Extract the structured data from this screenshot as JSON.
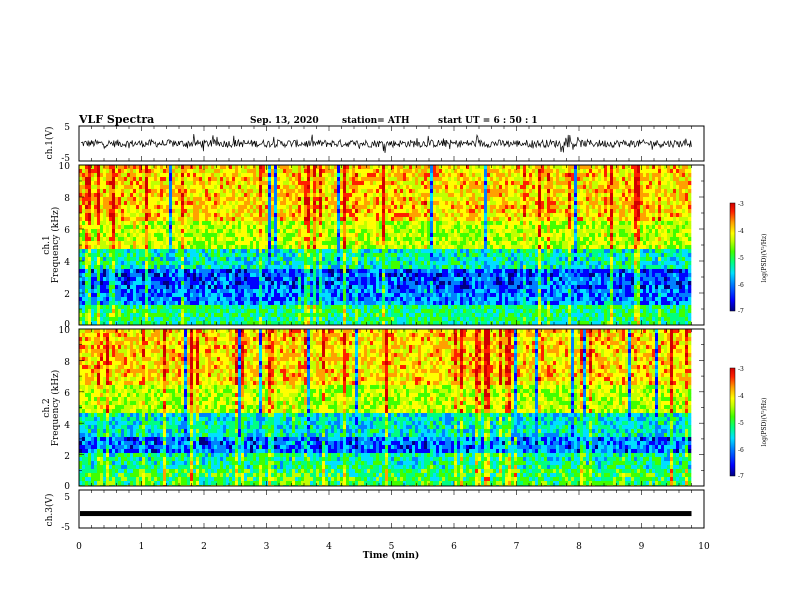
{
  "header": {
    "title": "VLF Spectra",
    "date": "Sep. 13, 2020",
    "station": "station= ATH",
    "start": "start  UT  =   6  : 50 : 1"
  },
  "colors": {
    "scale": [
      "#000080",
      "#0000ff",
      "#0080ff",
      "#00e0ff",
      "#00ff80",
      "#40ff00",
      "#c0ff00",
      "#ffff00",
      "#ffa000",
      "#ff2000",
      "#d00000"
    ],
    "trace": "#000000"
  },
  "chart_data": [
    {
      "type": "line",
      "panel": "ch1-waveform",
      "ylabel": "ch.1(V)",
      "ylim": [
        -5,
        5
      ],
      "yticks": [
        "5",
        "-5"
      ],
      "note": "noisy waveform centred near 0 V, mostly within about -1.5 to 1.5 V with spikes"
    },
    {
      "type": "heatmap",
      "panel": "ch1-spectrogram",
      "ylabel_line1": "ch.1",
      "ylabel_line2": "Frequency (kHz)",
      "ylim": [
        0,
        10
      ],
      "yticks": [
        "10",
        "8",
        "6",
        "4",
        "2",
        "0"
      ],
      "xlim": [
        0,
        9.8
      ],
      "colorbar": {
        "label": "log(PSD)(V²/Hz)",
        "range": [
          -7,
          -3
        ],
        "ticks": [
          "-3",
          "-4",
          "-5",
          "-6",
          "-7"
        ]
      },
      "bands": [
        {
          "from_khz": 0,
          "to_khz": 1.2,
          "level": -5.4
        },
        {
          "from_khz": 1.2,
          "to_khz": 2.2,
          "level": -6.2
        },
        {
          "from_khz": 2.2,
          "to_khz": 3.6,
          "level": -6.4
        },
        {
          "from_khz": 3.6,
          "to_khz": 4.8,
          "level": -5.6
        },
        {
          "from_khz": 4.8,
          "to_khz": 6.5,
          "level": -4.6
        },
        {
          "from_khz": 6.5,
          "to_khz": 10,
          "level": -4.1
        }
      ]
    },
    {
      "type": "heatmap",
      "panel": "ch2-spectrogram",
      "ylabel_line1": "ch.2",
      "ylabel_line2": "Frequency (kHz)",
      "ylim": [
        0,
        10
      ],
      "yticks": [
        "10",
        "8",
        "6",
        "4",
        "2",
        "0"
      ],
      "xlim": [
        0,
        9.8
      ],
      "colorbar": {
        "label": "log(PSD)(V²/Hz)",
        "range": [
          -7,
          -3
        ],
        "ticks": [
          "-3",
          "-4",
          "-5",
          "-6",
          "-7"
        ]
      },
      "bands": [
        {
          "from_khz": 0,
          "to_khz": 1.0,
          "level": -5.2
        },
        {
          "from_khz": 1.0,
          "to_khz": 2.0,
          "level": -5.5
        },
        {
          "from_khz": 2.0,
          "to_khz": 3.0,
          "level": -6.3
        },
        {
          "from_khz": 3.0,
          "to_khz": 4.6,
          "level": -5.7
        },
        {
          "from_khz": 4.6,
          "to_khz": 6.5,
          "level": -4.6
        },
        {
          "from_khz": 6.5,
          "to_khz": 10,
          "level": -4.1
        }
      ]
    },
    {
      "type": "line",
      "panel": "ch3-waveform",
      "ylabel": "ch.3(V)",
      "ylim": [
        -5,
        5
      ],
      "yticks": [
        "5",
        "-5"
      ],
      "values_constant": -1.2,
      "xlim": [
        0,
        9.8
      ]
    }
  ],
  "xaxis": {
    "label": "Time (min)",
    "ticks": [
      "0",
      "1",
      "2",
      "3",
      "4",
      "5",
      "6",
      "7",
      "8",
      "9",
      "10"
    ],
    "range": [
      0,
      10
    ]
  }
}
